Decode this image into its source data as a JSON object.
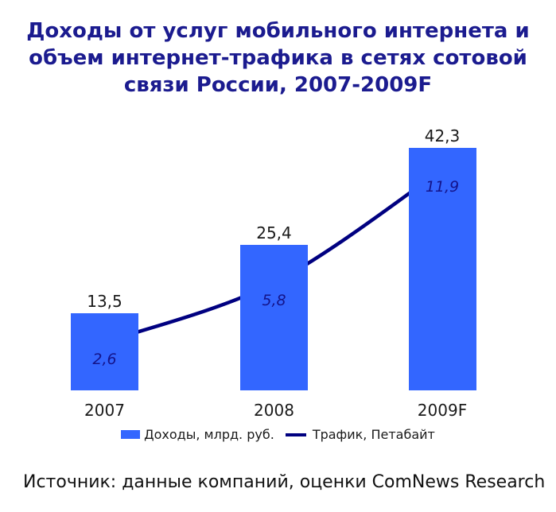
{
  "chart_data": {
    "type": "bar",
    "combo": "bar+line",
    "title": "Доходы от услуг мобильного интернета и объем интернет-трафика в сетях сотовой связи России, 2007-2009F",
    "source": "Источник: данные компаний, оценки ComNews Research",
    "categories": [
      "2007",
      "2008",
      "2009F"
    ],
    "series": [
      {
        "name": "Доходы, млрд. руб.",
        "type": "bar",
        "values": [
          13.5,
          25.4,
          42.3
        ],
        "labels": [
          "13,5",
          "25,4",
          "42,3"
        ],
        "color": "#3366ff"
      },
      {
        "name": "Трафик, Петабайт",
        "type": "line",
        "values": [
          2.6,
          5.8,
          11.9
        ],
        "labels": [
          "2,6",
          "5,8",
          "11,9"
        ],
        "color": "#000080"
      }
    ],
    "legend_position": "bottom",
    "grid": false,
    "axes_visible": false,
    "title_color": "#1b1b8f"
  }
}
